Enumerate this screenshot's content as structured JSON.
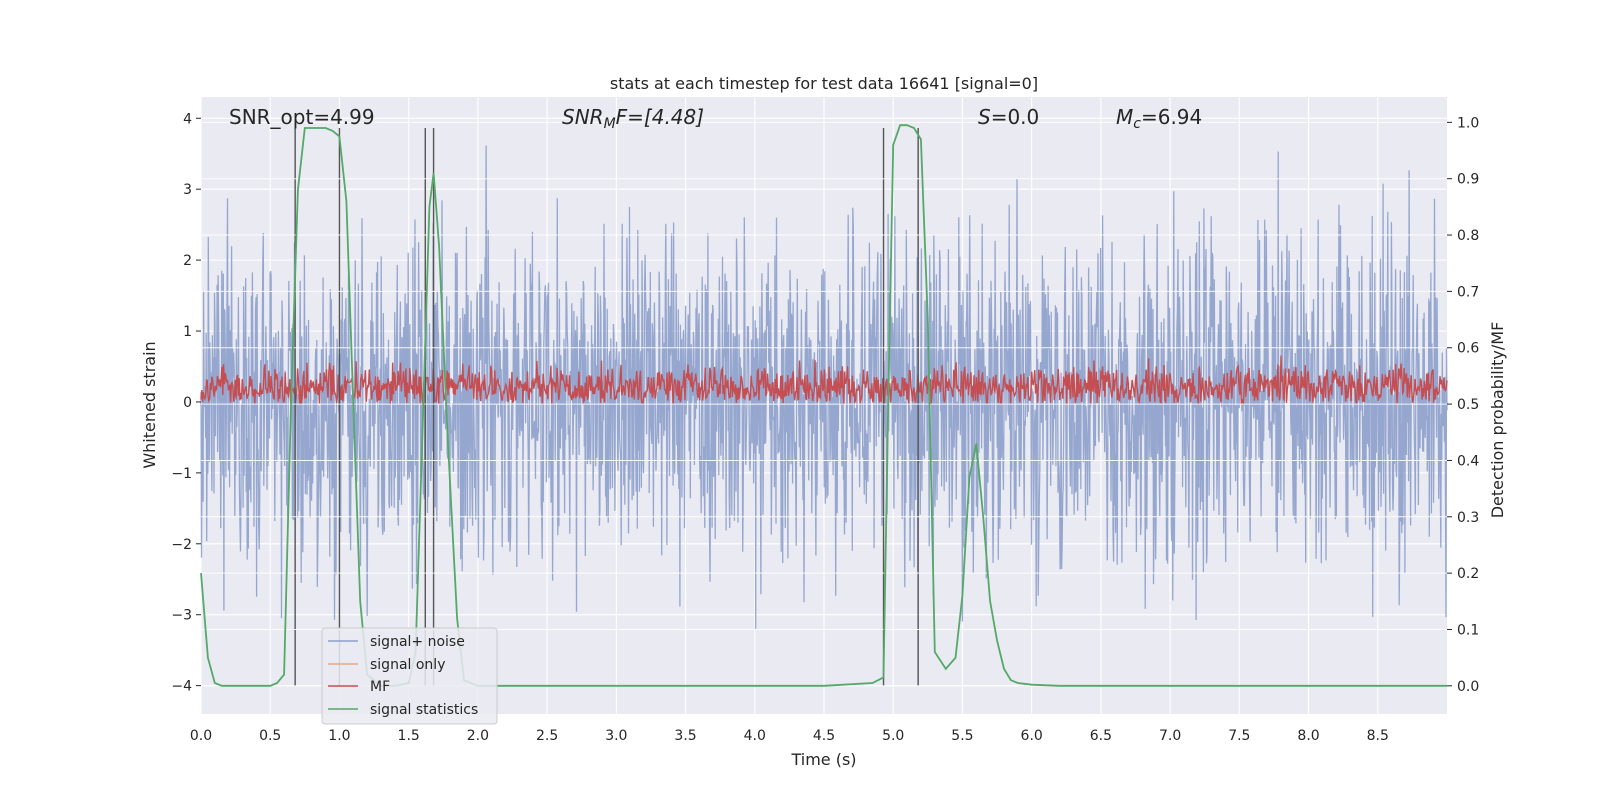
{
  "chart_data": {
    "type": "line",
    "title": "stats at each timestep for test data 16641 [signal=0]",
    "xlabel": "Time (s)",
    "ylabel_left": "Whitened strain",
    "ylabel_right": "Detection probability/MF",
    "xlim": [
      0.0,
      9.0
    ],
    "ylim_left": [
      -4.4,
      4.3
    ],
    "ylim_right": [
      -0.05,
      1.045
    ],
    "xticks": [
      0.0,
      0.5,
      1.0,
      1.5,
      2.0,
      2.5,
      3.0,
      3.5,
      4.0,
      4.5,
      5.0,
      5.5,
      6.0,
      6.5,
      7.0,
      7.5,
      8.0,
      8.5
    ],
    "xtick_labels": [
      "0.0",
      "0.5",
      "1.0",
      "1.5",
      "2.0",
      "2.5",
      "3.0",
      "3.5",
      "4.0",
      "4.5",
      "5.0",
      "5.5",
      "6.0",
      "6.5",
      "7.0",
      "7.5",
      "8.0",
      "8.5"
    ],
    "yticks_left": [
      -4,
      -3,
      -2,
      -1,
      0,
      1,
      2,
      3,
      4
    ],
    "ytick_labels_left": [
      "−4",
      "−3",
      "−2",
      "−1",
      "0",
      "1",
      "2",
      "3",
      "4"
    ],
    "yticks_right": [
      0.0,
      0.1,
      0.2,
      0.3,
      0.4,
      0.5,
      0.6,
      0.7,
      0.8,
      0.9,
      1.0
    ],
    "ytick_labels_right": [
      "0.0",
      "0.1",
      "0.2",
      "0.3",
      "0.4",
      "0.5",
      "0.6",
      "0.7",
      "0.8",
      "0.9",
      "1.0"
    ],
    "annotations": {
      "snr_opt": "SNR_opt=4.99",
      "snr_mf_base": "SNR",
      "snr_mf_sub": "M",
      "snr_mf_tail": "F=[4.48]",
      "s_label": "S",
      "s_value": "=0.0",
      "mc_base": "M",
      "mc_sub": "c",
      "mc_value": "=6.94"
    },
    "legend": {
      "placement": "lower-left",
      "entries": [
        {
          "label": "signal+ noise",
          "color": "#8da0cb"
        },
        {
          "label": "signal only",
          "color": "#e8a87c"
        },
        {
          "label": "MF",
          "color": "#c44e52"
        },
        {
          "label": "signal statistics",
          "color": "#55a868"
        }
      ]
    },
    "noise_band": {
      "typical_low": -1.6,
      "typical_high": 1.6,
      "max_abs": 3.9,
      "seed": 16641,
      "color": "#8da0cb"
    },
    "mf_band": {
      "typical_low": 0.05,
      "typical_high": 0.6,
      "peak": 0.95,
      "color": "#c44e52"
    },
    "vertical_lines": [
      {
        "x": 0.68,
        "ymin": 0.0,
        "ymax": 0.99
      },
      {
        "x": 1.0,
        "ymin": 0.0,
        "ymax": 0.99
      },
      {
        "x": 1.62,
        "ymin": 0.0,
        "ymax": 0.99
      },
      {
        "x": 1.68,
        "ymin": 0.0,
        "ymax": 0.99
      },
      {
        "x": 4.93,
        "ymin": 0.0,
        "ymax": 0.99
      },
      {
        "x": 5.18,
        "ymin": 0.0,
        "ymax": 0.99
      }
    ],
    "series": [
      {
        "name": "signal statistics",
        "axis": "right",
        "color": "#55a868",
        "x": [
          0.0,
          0.05,
          0.1,
          0.15,
          0.2,
          0.3,
          0.4,
          0.5,
          0.55,
          0.6,
          0.65,
          0.7,
          0.75,
          0.8,
          0.9,
          0.95,
          1.0,
          1.05,
          1.1,
          1.15,
          1.2,
          1.3,
          1.4,
          1.5,
          1.55,
          1.6,
          1.65,
          1.68,
          1.72,
          1.78,
          1.85,
          1.9,
          2.0,
          2.5,
          3.0,
          3.5,
          4.0,
          4.5,
          4.85,
          4.93,
          4.96,
          5.0,
          5.05,
          5.1,
          5.15,
          5.2,
          5.25,
          5.3,
          5.38,
          5.45,
          5.5,
          5.55,
          5.6,
          5.65,
          5.7,
          5.75,
          5.8,
          5.85,
          5.9,
          6.0,
          6.2,
          6.5,
          7.0,
          8.0,
          9.0
        ],
        "y": [
          0.2,
          0.05,
          0.005,
          0.0,
          0.0,
          0.0,
          0.0,
          0.0,
          0.005,
          0.02,
          0.5,
          0.88,
          0.99,
          0.99,
          0.99,
          0.985,
          0.975,
          0.86,
          0.5,
          0.15,
          0.02,
          0.0,
          0.0,
          0.005,
          0.06,
          0.45,
          0.85,
          0.91,
          0.78,
          0.45,
          0.12,
          0.01,
          0.0,
          0.0,
          0.0,
          0.0,
          0.0,
          0.0,
          0.005,
          0.015,
          0.45,
          0.96,
          0.995,
          0.995,
          0.99,
          0.97,
          0.65,
          0.06,
          0.03,
          0.05,
          0.16,
          0.37,
          0.43,
          0.3,
          0.15,
          0.08,
          0.03,
          0.01,
          0.005,
          0.002,
          0.0,
          0.0,
          0.0,
          0.0,
          0.0
        ]
      }
    ]
  }
}
